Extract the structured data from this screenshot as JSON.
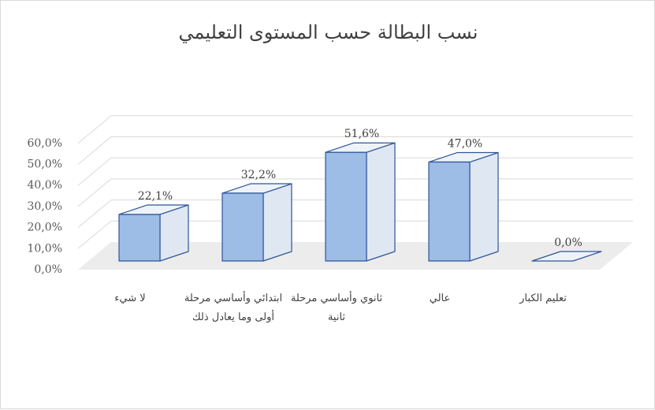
{
  "chart_data": {
    "type": "bar",
    "title": "نسب البطالة حسب المستوى التعليمي",
    "categories": [
      "لا شيء",
      "ابتدائي وأساسي مرحلة أولى وما يعادل ذلك",
      "ثانوي وأساسي مرحلة ثانية",
      "عالي",
      "تعليم الكبار"
    ],
    "values": [
      22.1,
      32.2,
      51.6,
      47.0,
      0.0
    ],
    "value_labels": [
      "22,1%",
      "32,2%",
      "51,6%",
      "47,0%",
      "0,0%"
    ],
    "y_ticks": [
      "0,0%",
      "10,0%",
      "20,0%",
      "30,0%",
      "40,0%",
      "50,0%",
      "60,0%"
    ],
    "ylim": [
      0,
      60
    ],
    "grid": true,
    "three_d": true,
    "legend": "none",
    "colors": {
      "bar_front": "#9dbce6",
      "bar_side": "#dfe7f2",
      "bar_top": "#eef3fa",
      "bar_edge": "#2f5597",
      "floor": "#ececec",
      "grid": "#d9d9d9"
    }
  }
}
